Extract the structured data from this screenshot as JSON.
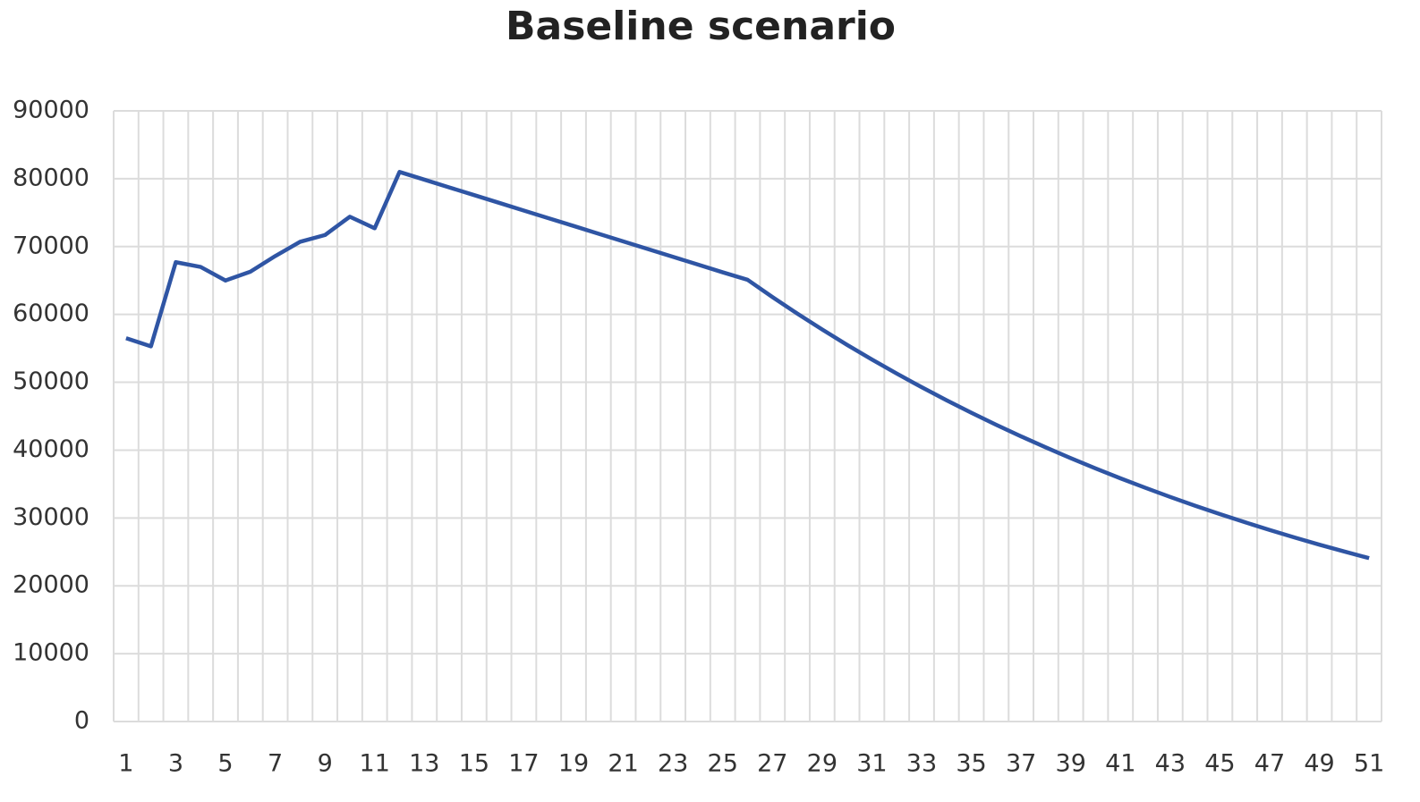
{
  "chart_data": {
    "type": "line",
    "title": "Baseline scenario",
    "categories": [
      "1",
      null,
      "3",
      null,
      "5",
      null,
      "7",
      null,
      "9",
      null,
      "11",
      null,
      "13",
      null,
      "15",
      null,
      "17",
      null,
      "19",
      null,
      "21",
      null,
      "23",
      null,
      "25",
      null,
      "27",
      null,
      "29",
      null,
      "31",
      null,
      "33",
      null,
      "35",
      null,
      "37",
      null,
      "39",
      null,
      "41",
      null,
      "43",
      null,
      "45",
      null,
      "47",
      null,
      "49",
      null,
      "51"
    ],
    "series": [
      {
        "name": "Baseline scenario",
        "color": "#2f55a4",
        "values": [
          56500,
          55300,
          67700,
          67000,
          65000,
          66300,
          68600,
          70700,
          71700,
          74400,
          72700,
          81000,
          79860,
          78720,
          77590,
          76450,
          75310,
          74170,
          73040,
          71900,
          70760,
          69620,
          68490,
          67350,
          66210,
          65100,
          62560,
          60120,
          57780,
          55520,
          53360,
          51280,
          49280,
          47350,
          45510,
          43730,
          42030,
          40390,
          38810,
          37300,
          35840,
          34450,
          33100,
          31810,
          30570,
          29380,
          28230,
          27130,
          26070,
          25060,
          24080
        ]
      }
    ],
    "ylim": [
      0,
      90000
    ],
    "yticks": [
      0,
      10000,
      20000,
      30000,
      40000,
      50000,
      60000,
      70000,
      80000,
      90000
    ],
    "grid": true
  }
}
